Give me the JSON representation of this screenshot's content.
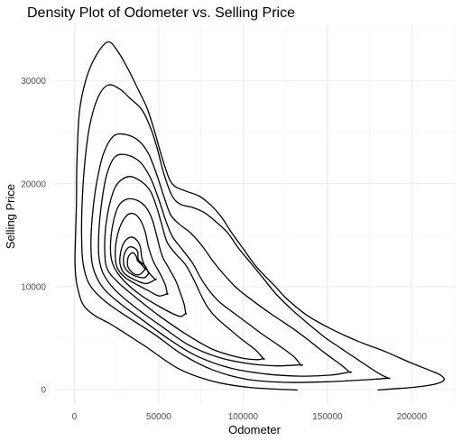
{
  "chart_data": {
    "type": "line",
    "subtype": "2d density contour",
    "title": "Density Plot of Odometer vs. Selling Price",
    "xlabel": "Odometer",
    "ylabel": "Selling Price",
    "xlim": [
      -12000,
      226000
    ],
    "ylim": [
      -1500,
      35500
    ],
    "x_ticks": [
      0,
      50000,
      100000,
      150000,
      200000
    ],
    "x_tick_labels": [
      "0",
      "50000",
      "100000",
      "150000",
      "200000"
    ],
    "y_ticks": [
      0,
      10000,
      20000,
      30000
    ],
    "y_tick_labels": [
      "0",
      "10000",
      "20000",
      "30000"
    ],
    "grid": true,
    "legend": "none",
    "line_color": "#000000",
    "contours": [
      {
        "level": 1,
        "open": true,
        "points": [
          [
            132000,
            -50
          ],
          [
            104000,
            200
          ],
          [
            82000,
            800
          ],
          [
            62000,
            2000
          ],
          [
            42000,
            4200
          ],
          [
            22000,
            6300
          ],
          [
            12000,
            7200
          ],
          [
            5000,
            8300
          ],
          [
            1500,
            10200
          ],
          [
            400,
            12000
          ],
          [
            500,
            14000
          ],
          [
            1200,
            18000
          ],
          [
            1500,
            22000
          ],
          [
            3000,
            27000
          ],
          [
            7000,
            30200
          ],
          [
            13000,
            32500
          ],
          [
            20000,
            33800
          ],
          [
            26000,
            32800
          ],
          [
            32000,
            31100
          ],
          [
            38000,
            29100
          ],
          [
            43000,
            27400
          ],
          [
            47000,
            25400
          ],
          [
            53000,
            22000
          ],
          [
            58000,
            20000
          ],
          [
            66000,
            19300
          ],
          [
            74000,
            18800
          ],
          [
            81000,
            17900
          ],
          [
            87000,
            16800
          ],
          [
            93000,
            15300
          ],
          [
            100000,
            13700
          ],
          [
            108000,
            11900
          ],
          [
            118000,
            10200
          ],
          [
            126000,
            8800
          ],
          [
            138000,
            7200
          ],
          [
            152000,
            5900
          ],
          [
            168000,
            4700
          ],
          [
            184000,
            3700
          ],
          [
            198000,
            2700
          ],
          [
            210000,
            1900
          ],
          [
            217000,
            1400
          ],
          [
            219000,
            900
          ],
          [
            213000,
            500
          ],
          [
            200000,
            200
          ],
          [
            188000,
            50
          ],
          [
            180000,
            -50
          ]
        ]
      },
      {
        "level": 2,
        "points": [
          [
            186000,
            1100
          ],
          [
            180000,
            1600
          ],
          [
            168000,
            2900
          ],
          [
            158000,
            4000
          ],
          [
            149000,
            5000
          ],
          [
            140000,
            6200
          ],
          [
            130000,
            7600
          ],
          [
            120000,
            9200
          ],
          [
            112000,
            10800
          ],
          [
            104000,
            12400
          ],
          [
            97000,
            13800
          ],
          [
            91000,
            15200
          ],
          [
            84000,
            16300
          ],
          [
            77000,
            17200
          ],
          [
            70000,
            17700
          ],
          [
            63000,
            18000
          ],
          [
            58000,
            18800
          ],
          [
            53000,
            21000
          ],
          [
            49000,
            23500
          ],
          [
            45000,
            25500
          ],
          [
            40000,
            27200
          ],
          [
            33000,
            28300
          ],
          [
            27000,
            29200
          ],
          [
            20000,
            29600
          ],
          [
            14000,
            28400
          ],
          [
            9000,
            25600
          ],
          [
            6000,
            21800
          ],
          [
            4500,
            17800
          ],
          [
            4300,
            14600
          ],
          [
            5200,
            12200
          ],
          [
            9000,
            10200
          ],
          [
            18000,
            8600
          ],
          [
            32000,
            7000
          ],
          [
            48000,
            5300
          ],
          [
            64000,
            3400
          ],
          [
            82000,
            1900
          ],
          [
            102000,
            1000
          ],
          [
            124000,
            700
          ],
          [
            150000,
            750
          ],
          [
            168000,
            900
          ],
          [
            178000,
            1000
          ],
          [
            186000,
            1100
          ]
        ]
      },
      {
        "level": 3,
        "points": [
          [
            163000,
            1700
          ],
          [
            158000,
            2400
          ],
          [
            148000,
            3600
          ],
          [
            138000,
            4900
          ],
          [
            128000,
            6100
          ],
          [
            117000,
            7300
          ],
          [
            106000,
            8600
          ],
          [
            96000,
            9900
          ],
          [
            88000,
            11300
          ],
          [
            82000,
            12500
          ],
          [
            76000,
            13900
          ],
          [
            69000,
            15200
          ],
          [
            62000,
            16100
          ],
          [
            57000,
            17000
          ],
          [
            53000,
            18800
          ],
          [
            49000,
            20800
          ],
          [
            44000,
            22900
          ],
          [
            38000,
            24200
          ],
          [
            30000,
            24800
          ],
          [
            23000,
            24600
          ],
          [
            17000,
            22800
          ],
          [
            13000,
            19900
          ],
          [
            10500,
            16600
          ],
          [
            9800,
            13900
          ],
          [
            11000,
            11900
          ],
          [
            16000,
            10100
          ],
          [
            26000,
            8500
          ],
          [
            40000,
            6800
          ],
          [
            56000,
            4900
          ],
          [
            72000,
            3300
          ],
          [
            92000,
            2100
          ],
          [
            114000,
            1500
          ],
          [
            134000,
            1300
          ],
          [
            152000,
            1400
          ],
          [
            163000,
            1700
          ]
        ]
      },
      {
        "level": 4,
        "points": [
          [
            134000,
            2400
          ],
          [
            130000,
            3200
          ],
          [
            121000,
            4300
          ],
          [
            112000,
            5300
          ],
          [
            103000,
            6400
          ],
          [
            94000,
            7500
          ],
          [
            86000,
            8500
          ],
          [
            80000,
            9600
          ],
          [
            75000,
            10800
          ],
          [
            70000,
            12300
          ],
          [
            64000,
            13600
          ],
          [
            58000,
            14900
          ],
          [
            54000,
            16500
          ],
          [
            50000,
            18500
          ],
          [
            45000,
            20600
          ],
          [
            39000,
            22100
          ],
          [
            31000,
            22800
          ],
          [
            24000,
            22600
          ],
          [
            19000,
            20800
          ],
          [
            16000,
            18000
          ],
          [
            14500,
            15300
          ],
          [
            14500,
            13000
          ],
          [
            17000,
            11300
          ],
          [
            24000,
            9700
          ],
          [
            36000,
            8000
          ],
          [
            52000,
            6100
          ],
          [
            68000,
            4300
          ],
          [
            86000,
            3100
          ],
          [
            104000,
            2500
          ],
          [
            120000,
            2300
          ],
          [
            134000,
            2400
          ]
        ]
      },
      {
        "level": 5,
        "points": [
          [
            112000,
            3000
          ],
          [
            107000,
            3900
          ],
          [
            99000,
            4900
          ],
          [
            91000,
            6000
          ],
          [
            84000,
            7000
          ],
          [
            79000,
            8000
          ],
          [
            75000,
            9200
          ],
          [
            71000,
            10600
          ],
          [
            66000,
            12100
          ],
          [
            60000,
            13200
          ],
          [
            55000,
            14300
          ],
          [
            52000,
            15900
          ],
          [
            49000,
            17600
          ],
          [
            45000,
            19300
          ],
          [
            39000,
            20300
          ],
          [
            32000,
            20700
          ],
          [
            25000,
            19900
          ],
          [
            21000,
            18100
          ],
          [
            18500,
            15700
          ],
          [
            18000,
            13400
          ],
          [
            19500,
            11700
          ],
          [
            26000,
            10400
          ],
          [
            36000,
            9000
          ],
          [
            50000,
            7200
          ],
          [
            66000,
            5400
          ],
          [
            82000,
            3900
          ],
          [
            98000,
            3100
          ],
          [
            108000,
            2900
          ],
          [
            112000,
            3000
          ]
        ]
      },
      {
        "level": 6,
        "points": [
          [
            66000,
            7400
          ],
          [
            65000,
            8300
          ],
          [
            63000,
            9300
          ],
          [
            60000,
            10600
          ],
          [
            56000,
            11800
          ],
          [
            52000,
            13000
          ],
          [
            49000,
            14800
          ],
          [
            46000,
            16600
          ],
          [
            42000,
            17800
          ],
          [
            37000,
            18400
          ],
          [
            31000,
            18500
          ],
          [
            26000,
            17800
          ],
          [
            23000,
            16200
          ],
          [
            21500,
            14400
          ],
          [
            21800,
            12800
          ],
          [
            24500,
            11600
          ],
          [
            31000,
            10300
          ],
          [
            40000,
            9100
          ],
          [
            50000,
            8100
          ],
          [
            58000,
            7400
          ],
          [
            63000,
            7100
          ],
          [
            66000,
            7400
          ]
        ]
      },
      {
        "level": 7,
        "points": [
          [
            55000,
            9300
          ],
          [
            54000,
            10100
          ],
          [
            51000,
            11200
          ],
          [
            47000,
            12400
          ],
          [
            44000,
            13800
          ],
          [
            42000,
            15300
          ],
          [
            39000,
            16500
          ],
          [
            35000,
            17100
          ],
          [
            31000,
            16900
          ],
          [
            27500,
            16000
          ],
          [
            25000,
            14600
          ],
          [
            24200,
            13000
          ],
          [
            25500,
            11800
          ],
          [
            30000,
            10900
          ],
          [
            37000,
            10200
          ],
          [
            44000,
            9600
          ],
          [
            50000,
            9100
          ],
          [
            55000,
            9300
          ]
        ]
      },
      {
        "level": 8,
        "points": [
          [
            48000,
            10700
          ],
          [
            45000,
            11200
          ],
          [
            42000,
            11900
          ],
          [
            40000,
            12800
          ],
          [
            39000,
            13900
          ],
          [
            36500,
            14600
          ],
          [
            33000,
            14800
          ],
          [
            29500,
            14300
          ],
          [
            27500,
            13400
          ],
          [
            27000,
            12300
          ],
          [
            29000,
            11400
          ],
          [
            33000,
            10900
          ],
          [
            38000,
            10500
          ],
          [
            43000,
            10300
          ],
          [
            48000,
            10700
          ]
        ]
      },
      {
        "level": 9,
        "points": [
          [
            44000,
            11300
          ],
          [
            42000,
            12000
          ],
          [
            38000,
            12600
          ],
          [
            37500,
            13400
          ],
          [
            35000,
            13800
          ],
          [
            32000,
            13800
          ],
          [
            29500,
            13100
          ],
          [
            29300,
            12100
          ],
          [
            31500,
            11500
          ],
          [
            35000,
            11100
          ],
          [
            39000,
            10900
          ],
          [
            42000,
            10900
          ],
          [
            44000,
            11300
          ]
        ]
      },
      {
        "level": 10,
        "points": [
          [
            42000,
            11700
          ],
          [
            39500,
            12200
          ],
          [
            37500,
            12500
          ],
          [
            36500,
            13000
          ],
          [
            34500,
            13300
          ],
          [
            32000,
            12900
          ],
          [
            31500,
            12100
          ],
          [
            33000,
            11600
          ],
          [
            36000,
            11200
          ],
          [
            39000,
            11200
          ],
          [
            42000,
            11700
          ]
        ]
      }
    ]
  }
}
